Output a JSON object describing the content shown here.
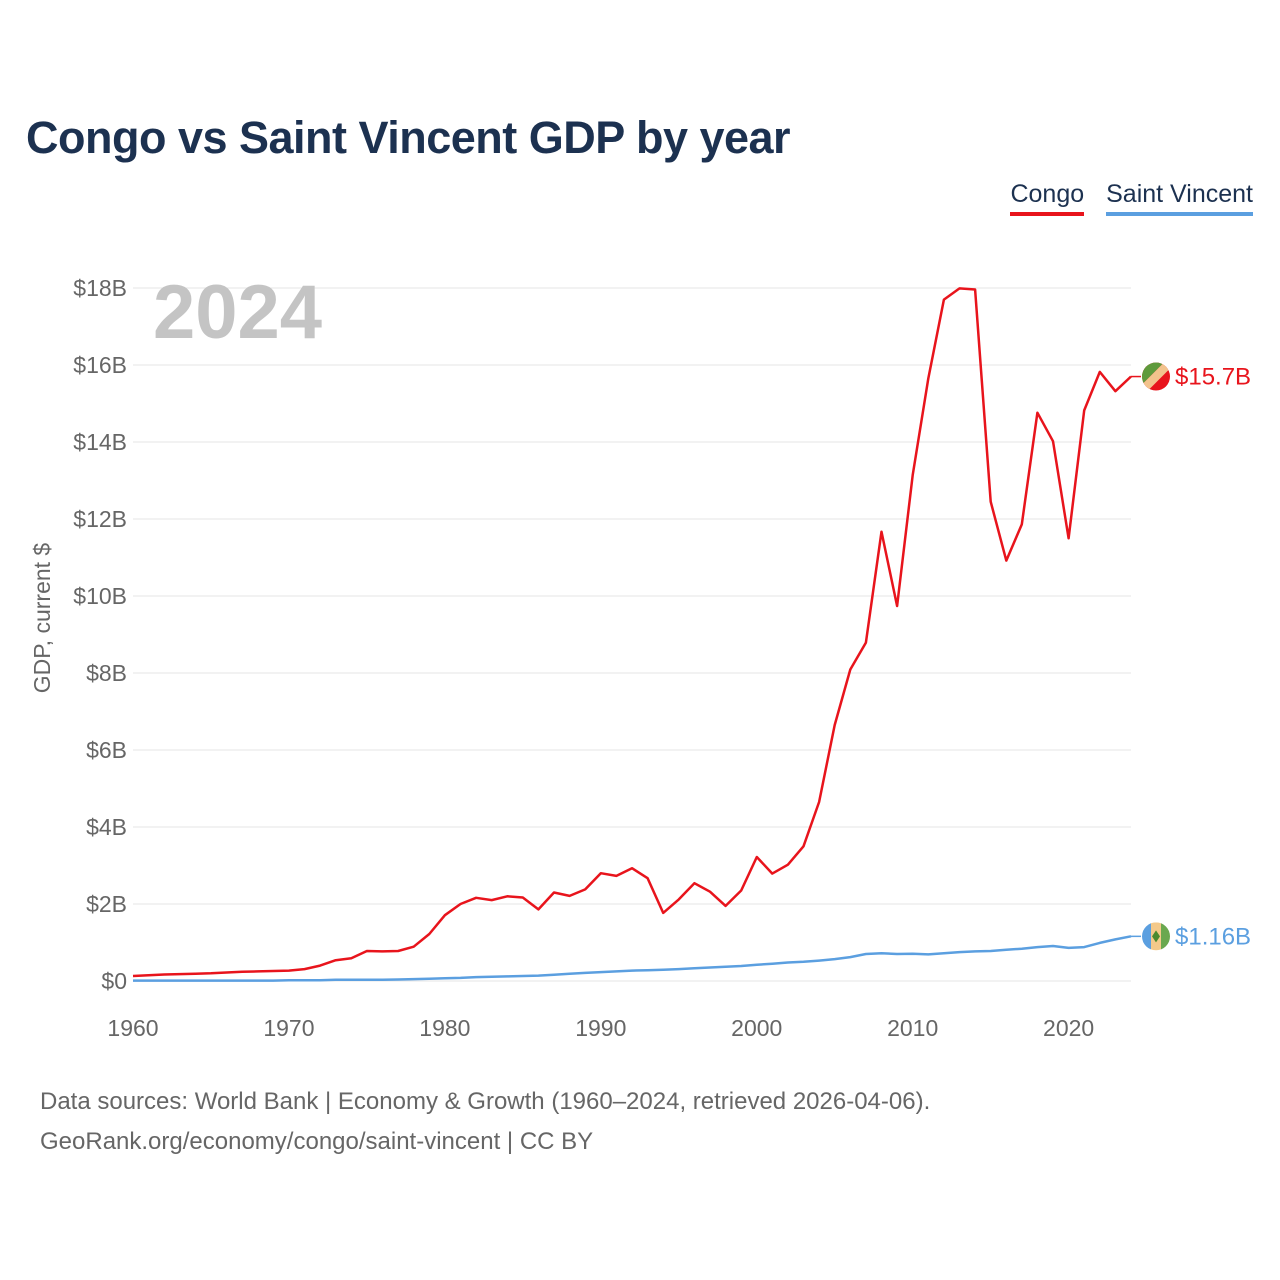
{
  "chart_data": {
    "type": "line",
    "title": "Congo vs Saint Vincent GDP by year",
    "ylabel": "GDP, current $",
    "xlabel": "",
    "year_label": "2024",
    "xlim": [
      1960,
      2024
    ],
    "ylim": [
      0,
      18
    ],
    "x_ticks": [
      1960,
      1970,
      1980,
      1990,
      2000,
      2010,
      2020
    ],
    "y_ticks": [
      {
        "value": 0,
        "label": "$0"
      },
      {
        "value": 2,
        "label": "$2B"
      },
      {
        "value": 4,
        "label": "$4B"
      },
      {
        "value": 6,
        "label": "$6B"
      },
      {
        "value": 8,
        "label": "$8B"
      },
      {
        "value": 10,
        "label": "$10B"
      },
      {
        "value": 12,
        "label": "$12B"
      },
      {
        "value": 14,
        "label": "$14B"
      },
      {
        "value": 16,
        "label": "$16B"
      },
      {
        "value": 18,
        "label": "$18B"
      }
    ],
    "x": [
      1960,
      1961,
      1962,
      1963,
      1964,
      1965,
      1966,
      1967,
      1968,
      1969,
      1970,
      1971,
      1972,
      1973,
      1974,
      1975,
      1976,
      1977,
      1978,
      1979,
      1980,
      1981,
      1982,
      1983,
      1984,
      1985,
      1986,
      1987,
      1988,
      1989,
      1990,
      1991,
      1992,
      1993,
      1994,
      1995,
      1996,
      1997,
      1998,
      1999,
      2000,
      2001,
      2002,
      2003,
      2004,
      2005,
      2006,
      2007,
      2008,
      2009,
      2010,
      2011,
      2012,
      2013,
      2014,
      2015,
      2016,
      2017,
      2018,
      2019,
      2020,
      2021,
      2022,
      2023,
      2024
    ],
    "series": [
      {
        "name": "Congo",
        "color": "#e8141c",
        "end_label": "$15.7B",
        "values": [
          0.13,
          0.15,
          0.17,
          0.18,
          0.19,
          0.2,
          0.22,
          0.24,
          0.25,
          0.26,
          0.27,
          0.31,
          0.4,
          0.54,
          0.59,
          0.78,
          0.77,
          0.78,
          0.89,
          1.22,
          1.71,
          2.0,
          2.16,
          2.1,
          2.2,
          2.17,
          1.86,
          2.3,
          2.21,
          2.38,
          2.8,
          2.73,
          2.93,
          2.67,
          1.77,
          2.12,
          2.54,
          2.32,
          1.95,
          2.35,
          3.22,
          2.79,
          3.02,
          3.5,
          4.65,
          6.65,
          8.09,
          8.79,
          11.67,
          9.74,
          13.14,
          15.65,
          17.7,
          17.99,
          17.96,
          12.45,
          10.92,
          11.86,
          14.76,
          14.02,
          11.5,
          14.82,
          15.82,
          15.32,
          15.7
        ]
      },
      {
        "name": "Saint Vincent",
        "color": "#5b9fe0",
        "end_label": "$1.16B",
        "values": [
          0.01,
          0.01,
          0.01,
          0.01,
          0.01,
          0.01,
          0.01,
          0.01,
          0.01,
          0.01,
          0.02,
          0.02,
          0.02,
          0.03,
          0.03,
          0.03,
          0.03,
          0.04,
          0.05,
          0.06,
          0.07,
          0.08,
          0.1,
          0.11,
          0.12,
          0.13,
          0.14,
          0.16,
          0.19,
          0.21,
          0.23,
          0.25,
          0.27,
          0.28,
          0.29,
          0.31,
          0.33,
          0.35,
          0.37,
          0.39,
          0.42,
          0.45,
          0.48,
          0.5,
          0.53,
          0.57,
          0.62,
          0.7,
          0.72,
          0.7,
          0.71,
          0.69,
          0.72,
          0.75,
          0.77,
          0.78,
          0.81,
          0.84,
          0.88,
          0.91,
          0.86,
          0.88,
          0.99,
          1.08,
          1.16
        ]
      }
    ]
  },
  "legend": {
    "congo": "Congo",
    "saint_vincent": "Saint Vincent"
  },
  "footer": {
    "line1": "Data sources: World Bank | Economy & Growth (1960–2024, retrieved 2026-04-06).",
    "line2": "GeoRank.org/economy/congo/saint-vincent | CC BY"
  }
}
